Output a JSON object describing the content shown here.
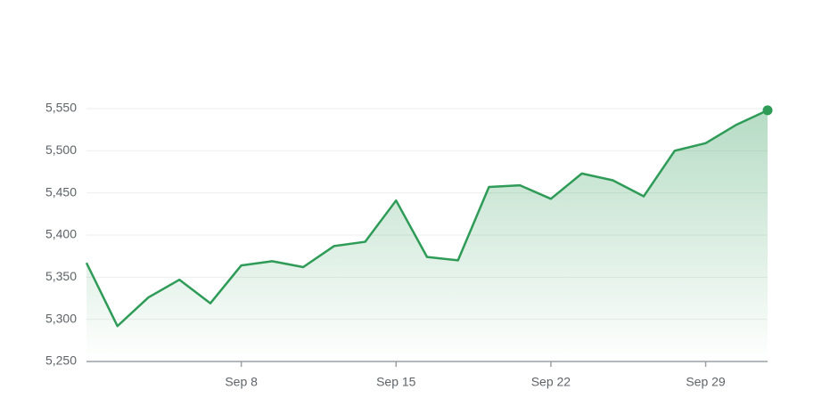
{
  "chart_data": {
    "type": "line",
    "categories": [
      null,
      null,
      null,
      null,
      null,
      "Sep 8",
      null,
      null,
      null,
      null,
      "Sep 15",
      null,
      null,
      null,
      null,
      "Sep 22",
      null,
      null,
      null,
      null,
      "Sep 29",
      null,
      null
    ],
    "series": [
      {
        "color": "#2e9b57",
        "values": [
          5367,
          5292,
          5326,
          5347,
          5319,
          5364,
          5369,
          5362,
          5387,
          5392,
          5441,
          5374,
          5370,
          5457,
          5459,
          5443,
          5473,
          5465,
          5446,
          5500,
          5509,
          5531,
          5548
        ]
      }
    ],
    "ylim": [
      5250,
      5550
    ],
    "yticks": [
      {
        "value": 5250,
        "label": "5,250"
      },
      {
        "value": 5300,
        "label": "5,300"
      },
      {
        "value": 5350,
        "label": "5,350"
      },
      {
        "value": 5400,
        "label": "5,400"
      },
      {
        "value": 5450,
        "label": "5,450"
      },
      {
        "value": 5500,
        "label": "5,500"
      },
      {
        "value": 5550,
        "label": "5,550"
      }
    ],
    "grid": true
  }
}
